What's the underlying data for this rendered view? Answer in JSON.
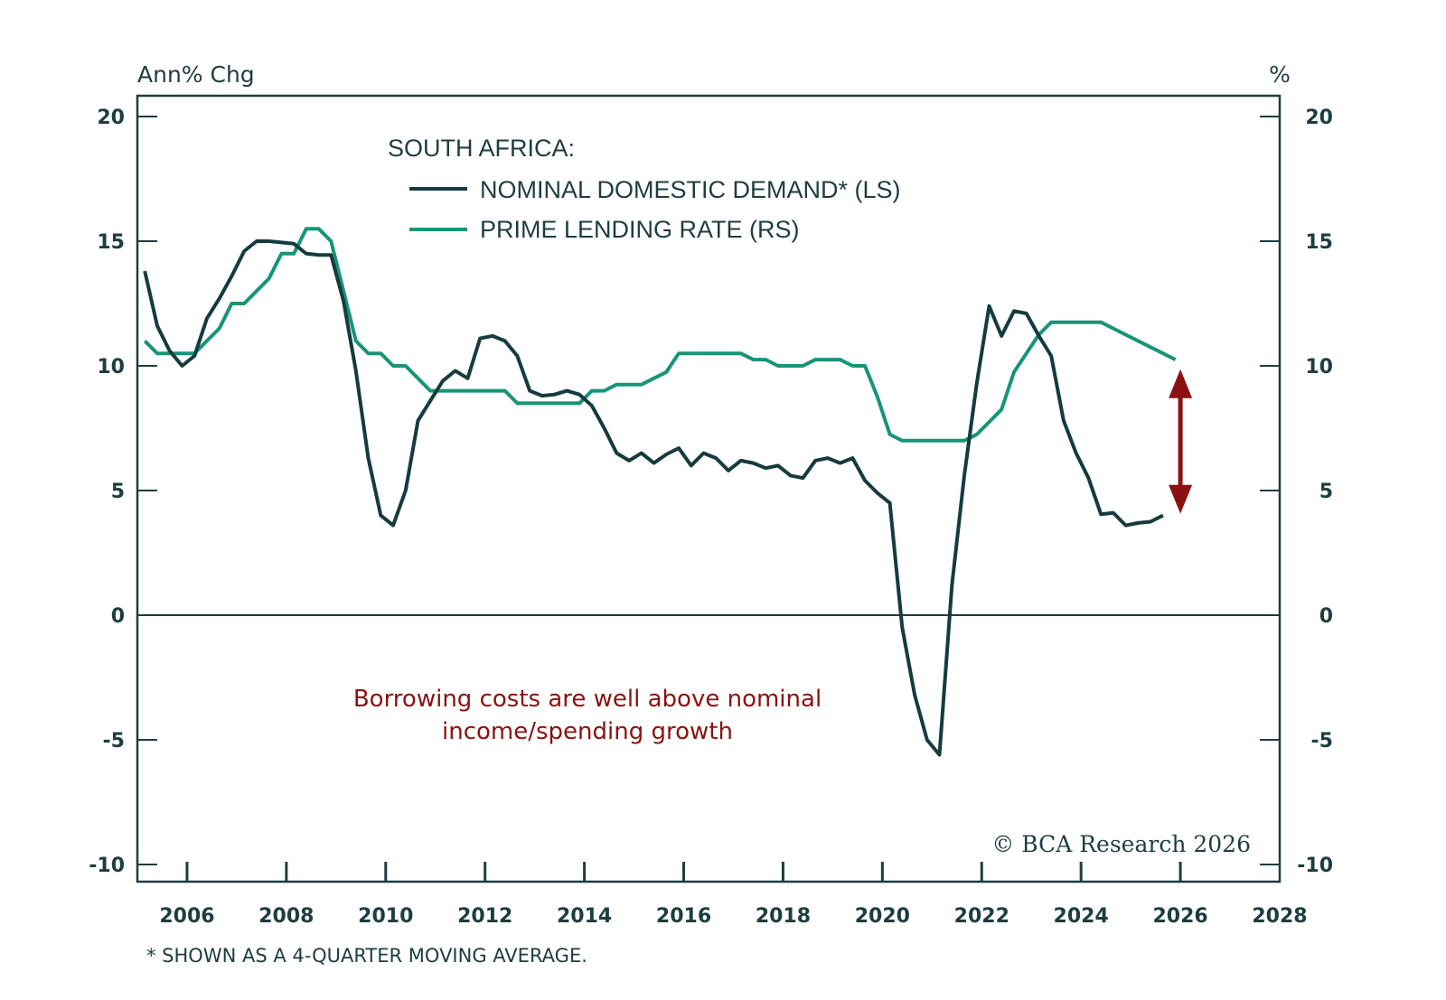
{
  "chart_data": {
    "type": "line",
    "title": "SOUTH AFRICA:",
    "ylabel_left": "Ann% Chg",
    "ylabel_right": "%",
    "xlabel": "",
    "xlim": [
      2005,
      2028
    ],
    "ylim_left": [
      -10,
      20
    ],
    "ylim_right": [
      -10,
      20
    ],
    "x_ticks": [
      "2006",
      "2008",
      "2010",
      "2012",
      "2014",
      "2016",
      "2018",
      "2020",
      "2022",
      "2024",
      "2026",
      "2028"
    ],
    "y_ticks_left": [
      "20",
      "15",
      "10",
      "5",
      "0",
      "-5",
      "-10"
    ],
    "y_ticks_right": [
      "20",
      "15",
      "10",
      "5",
      "0",
      "-5",
      "-10"
    ],
    "grid": false,
    "zero_line": true,
    "legend_position": "top-center",
    "series": [
      {
        "name": "NOMINAL DOMESTIC DEMAND* (LS)",
        "axis": "left",
        "color": "#163b3e",
        "x": [
          2005.15,
          2005.4,
          2005.65,
          2005.9,
          2006.15,
          2006.4,
          2006.65,
          2006.9,
          2007.15,
          2007.4,
          2007.65,
          2007.9,
          2008.15,
          2008.4,
          2008.65,
          2008.9,
          2009.15,
          2009.4,
          2009.65,
          2009.9,
          2010.15,
          2010.4,
          2010.65,
          2010.9,
          2011.15,
          2011.4,
          2011.65,
          2011.9,
          2012.15,
          2012.4,
          2012.65,
          2012.9,
          2013.15,
          2013.4,
          2013.65,
          2013.9,
          2014.15,
          2014.4,
          2014.65,
          2014.9,
          2015.15,
          2015.4,
          2015.65,
          2015.9,
          2016.15,
          2016.4,
          2016.65,
          2016.9,
          2017.15,
          2017.4,
          2017.65,
          2017.9,
          2018.15,
          2018.4,
          2018.65,
          2018.9,
          2019.15,
          2019.4,
          2019.65,
          2019.9,
          2020.15,
          2020.4,
          2020.65,
          2020.9,
          2021.15,
          2021.4,
          2021.65,
          2021.9,
          2022.15,
          2022.4,
          2022.65,
          2022.9,
          2023.15,
          2023.4,
          2023.65,
          2023.9,
          2024.15,
          2024.4,
          2024.65,
          2024.9,
          2025.15,
          2025.4,
          2025.65
        ],
        "values": [
          13.8,
          11.6,
          10.6,
          10.0,
          10.4,
          11.9,
          12.7,
          13.6,
          14.6,
          15.0,
          15.0,
          14.95,
          14.9,
          14.5,
          14.45,
          14.45,
          12.6,
          9.8,
          6.3,
          4.0,
          3.6,
          5.0,
          7.8,
          8.6,
          9.4,
          9.8,
          9.5,
          11.1,
          11.2,
          11.0,
          10.4,
          9.0,
          8.8,
          8.85,
          9.0,
          8.85,
          8.4,
          7.5,
          6.5,
          6.2,
          6.5,
          6.1,
          6.45,
          6.7,
          6.0,
          6.5,
          6.3,
          5.8,
          6.2,
          6.1,
          5.9,
          6.0,
          5.6,
          5.5,
          6.2,
          6.3,
          6.1,
          6.3,
          5.4,
          4.9,
          4.5,
          -0.5,
          -3.2,
          -5.0,
          -5.6,
          1.2,
          5.6,
          9.3,
          12.4,
          11.2,
          12.2,
          12.1,
          11.2,
          10.4,
          7.8,
          6.5,
          5.5,
          4.05,
          4.1,
          3.6,
          3.7,
          3.75,
          4.0
        ]
      },
      {
        "name": "PRIME LENDING RATE (RS)",
        "axis": "right",
        "color": "#179577",
        "x": [
          2005.15,
          2005.4,
          2005.65,
          2005.9,
          2006.15,
          2006.4,
          2006.65,
          2006.9,
          2007.15,
          2007.4,
          2007.65,
          2007.9,
          2008.15,
          2008.4,
          2008.65,
          2008.9,
          2009.15,
          2009.4,
          2009.65,
          2009.9,
          2010.15,
          2010.4,
          2010.65,
          2010.9,
          2011.15,
          2011.4,
          2011.65,
          2011.9,
          2012.15,
          2012.4,
          2012.65,
          2012.9,
          2013.15,
          2013.4,
          2013.65,
          2013.9,
          2014.15,
          2014.4,
          2014.65,
          2014.9,
          2015.15,
          2015.4,
          2015.65,
          2015.9,
          2016.15,
          2016.4,
          2016.65,
          2016.9,
          2017.15,
          2017.4,
          2017.65,
          2017.9,
          2018.15,
          2018.4,
          2018.65,
          2018.9,
          2019.15,
          2019.4,
          2019.65,
          2019.9,
          2020.15,
          2020.4,
          2020.65,
          2020.9,
          2021.15,
          2021.4,
          2021.65,
          2021.9,
          2022.15,
          2022.4,
          2022.65,
          2022.9,
          2023.15,
          2023.4,
          2023.65,
          2023.9,
          2024.15,
          2024.4,
          2024.65,
          2024.9,
          2025.15,
          2025.4,
          2025.65,
          2025.9
        ],
        "values": [
          11.0,
          10.5,
          10.5,
          10.5,
          10.5,
          11.0,
          11.5,
          12.5,
          12.5,
          13.0,
          13.5,
          14.5,
          14.5,
          15.5,
          15.5,
          15.0,
          13.0,
          11.0,
          10.5,
          10.5,
          10.0,
          10.0,
          9.5,
          9.0,
          9.0,
          9.0,
          9.0,
          9.0,
          9.0,
          9.0,
          8.5,
          8.5,
          8.5,
          8.5,
          8.5,
          8.5,
          9.0,
          9.0,
          9.25,
          9.25,
          9.25,
          9.5,
          9.75,
          10.5,
          10.5,
          10.5,
          10.5,
          10.5,
          10.5,
          10.25,
          10.25,
          10.0,
          10.0,
          10.0,
          10.25,
          10.25,
          10.25,
          10.0,
          10.0,
          8.75,
          7.25,
          7.0,
          7.0,
          7.0,
          7.0,
          7.0,
          7.0,
          7.25,
          7.75,
          8.25,
          9.75,
          10.5,
          11.25,
          11.75,
          11.75,
          11.75,
          11.75,
          11.75,
          11.5,
          11.25,
          11.0,
          10.75,
          10.5,
          10.25
        ]
      }
    ],
    "annotations": {
      "text_line1": "Borrowing costs are well above nominal",
      "text_line2": "income/spending growth",
      "arrow": {
        "x": 2026.0,
        "y_top": 9.5,
        "y_bottom": 4.5,
        "color": "#8b1212"
      }
    },
    "footnote": "* SHOWN AS A 4-QUARTER MOVING AVERAGE.",
    "source": "© BCA Research 2026"
  }
}
